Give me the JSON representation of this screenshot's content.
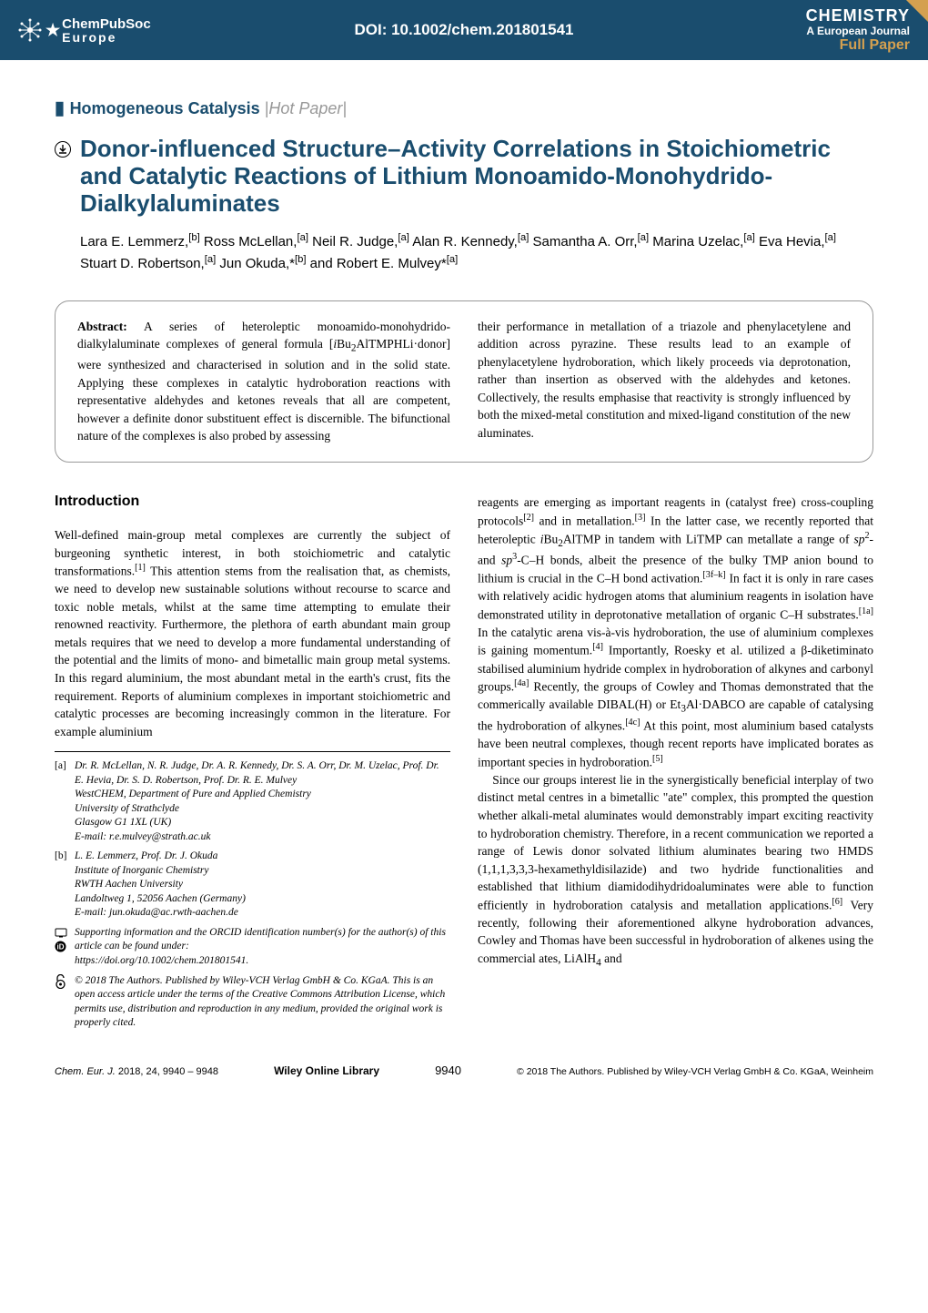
{
  "header": {
    "logo_left_top": "ChemPubSoc",
    "logo_left_bottom": "Europe",
    "doi": "DOI: 10.1002/chem.201801541",
    "logo_right_top": "CHEMISTRY",
    "logo_right_mid": "A European Journal",
    "logo_right_bottom": "Full Paper"
  },
  "section": {
    "category": "Homogeneous Catalysis",
    "hot": "Hot Paper"
  },
  "title": "Donor-influenced Structure–Activity Correlations in Stoichiometric and Catalytic Reactions of Lithium Monoamido-Monohydrido-Dialkylaluminates",
  "authors_html": "Lara E. Lemmerz,<sup>[b]</sup> Ross McLellan,<sup>[a]</sup> Neil R. Judge,<sup>[a]</sup> Alan R. Kennedy,<sup>[a]</sup> Samantha A. Orr,<sup>[a]</sup> Marina Uzelac,<sup>[a]</sup> Eva Hevia,<sup>[a]</sup> Stuart D. Robertson,<sup>[a]</sup> Jun Okuda,*<sup>[b]</sup> and Robert E. Mulvey*<sup>[a]</sup>",
  "abstract": {
    "label": "Abstract:",
    "left": "A series of heteroleptic monoamido-monohydrido-dialkylaluminate complexes of general formula [<i>i</i>Bu<sub>2</sub>AlTMPHLi·donor] were synthesized and characterised in solution and in the solid state. Applying these complexes in catalytic hydroboration reactions with representative aldehydes and ketones reveals that all are competent, however a definite donor substituent effect is discernible. The bifunctional nature of the complexes is also probed by assessing",
    "right": "their performance in metallation of a triazole and phenylacetylene and addition across pyrazine. These results lead to an example of phenylacetylene hydroboration, which likely proceeds via deprotonation, rather than insertion as observed with the aldehydes and ketones. Collectively, the results emphasise that reactivity is strongly influenced by both the mixed-metal constitution and mixed-ligand constitution of the new aluminates."
  },
  "intro_heading": "Introduction",
  "intro_left": "Well-defined main-group metal complexes are currently the subject of burgeoning synthetic interest, in both stoichiometric and catalytic transformations.<sup>[1]</sup> This attention stems from the realisation that, as chemists, we need to develop new sustainable solutions without recourse to scarce and toxic noble metals, whilst at the same time attempting to emulate their renowned reactivity. Furthermore, the plethora of earth abundant main group metals requires that we need to develop a more fundamental understanding of the potential and the limits of mono- and bimetallic main group metal systems. In this regard aluminium, the most abundant metal in the earth's crust, fits the requirement. Reports of aluminium complexes in important stoichiometric and catalytic processes are becoming increasingly common in the literature. For example aluminium",
  "intro_right_p1": "reagents are emerging as important reagents in (catalyst free) cross-coupling protocols<sup>[2]</sup> and in metallation.<sup>[3]</sup> In the latter case, we recently reported that heteroleptic <i>i</i>Bu<sub>2</sub>AlTMP in tandem with LiTMP can metallate a range of <i>sp</i><sup>2</sup>- and <i>sp</i><sup>3</sup>-C–H bonds, albeit the presence of the bulky TMP anion bound to lithium is crucial in the C–H bond activation.<sup>[3f–k]</sup> In fact it is only in rare cases with relatively acidic hydrogen atoms that aluminium reagents in isolation have demonstrated utility in deprotonative metallation of organic C–H substrates.<sup>[1a]</sup> In the catalytic arena vis-à-vis hydroboration, the use of aluminium complexes is gaining momentum.<sup>[4]</sup> Importantly, Roesky et al. utilized a β-diketiminato stabilised aluminium hydride complex in hydroboration of alkynes and carbonyl groups.<sup>[4a]</sup> Recently, the groups of Cowley and Thomas demonstrated that the commerically available DIBAL(H) or Et<sub>3</sub>Al·DABCO are capable of catalysing the hydroboration of alkynes.<sup>[4c]</sup> At this point, most aluminium based catalysts have been neutral complexes, though recent reports have implicated borates as important species in hydroboration.<sup>[5]</sup>",
  "intro_right_p2": "Since our groups interest lie in the synergistically beneficial interplay of two distinct metal centres in a bimetallic \"ate\" complex, this prompted the question whether alkali-metal aluminates would demonstrably impart exciting reactivity to hydroboration chemistry. Therefore, in a recent communication we reported a range of Lewis donor solvated lithium aluminates bearing two HMDS (1,1,1,3,3,3-hexamethyldisilazide) and two hydride functionalities and established that lithium diamidodihydridoaluminates were able to function efficiently in hydroboration catalysis and metallation applications.<sup>[6]</sup> Very recently, following their aforementioned alkyne hydroboration advances, Cowley and Thomas have been successful in hydroboration of alkenes using the commercial ates, LiAlH<sub>4</sub> and",
  "affiliations": {
    "a_label": "[a]",
    "a_text": "Dr. R. McLellan, N. R. Judge, Dr. A. R. Kennedy, Dr. S. A. Orr, Dr. M. Uzelac, Prof. Dr. E. Hevia, Dr. S. D. Robertson, Prof. Dr. R. E. Mulvey<br>WestCHEM, Department of Pure and Applied Chemistry<br>University of Strathclyde<br>Glasgow G1 1XL (UK)<br>E-mail: r.e.mulvey@strath.ac.uk",
    "b_label": "[b]",
    "b_text": "L. E. Lemmerz, Prof. Dr. J. Okuda<br>Institute of Inorganic Chemistry<br>RWTH Aachen University<br>Landoltweg 1, 52056 Aachen (Germany)<br>E-mail: jun.okuda@ac.rwth-aachen.de",
    "supp_text": "Supporting information and the ORCID identification number(s) for the author(s) of this article can be found under:<br>https://doi.org/10.1002/chem.201801541.",
    "license_text": "© 2018 The Authors. Published by Wiley-VCH Verlag GmbH & Co. KGaA. This is an open access article under the terms of the Creative Commons Attribution License, which permits use, distribution and reproduction in any medium, provided the original work is properly cited."
  },
  "footer": {
    "journal": "Chem. Eur. J.",
    "year_vol": "2018, 24, 9940 – 9948",
    "library": "Wiley Online Library",
    "page": "9940",
    "copyright": "© 2018 The Authors. Published by Wiley-VCH Verlag GmbH & Co. KGaA, Weinheim"
  },
  "colors": {
    "header_bg": "#1a4d6e",
    "accent": "#d4a050",
    "text": "#000000",
    "gray": "#999999"
  }
}
